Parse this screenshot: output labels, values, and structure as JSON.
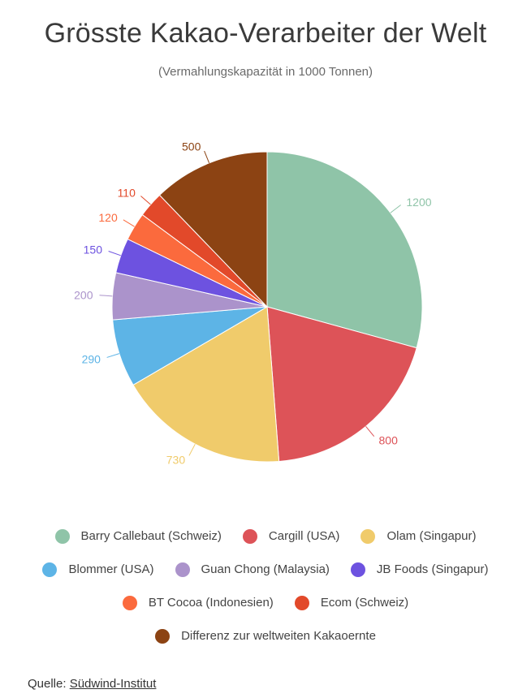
{
  "chart_data": {
    "type": "pie",
    "title": "Grösste Kakao-Verarbeiter der Welt",
    "subtitle": "(Vermahlungskapazität in 1000 Tonnen)",
    "start_angle_deg": 0,
    "direction": "clockwise",
    "slices": [
      {
        "label": "Barry Callebaut (Schweiz)",
        "value": 1200,
        "color": "#8fc4a8"
      },
      {
        "label": "Cargill (USA)",
        "value": 800,
        "color": "#dd5358"
      },
      {
        "label": "Olam (Singapur)",
        "value": 730,
        "color": "#f0cb6b"
      },
      {
        "label": "Blommer (USA)",
        "value": 290,
        "color": "#5db4e6"
      },
      {
        "label": "Guan Chong (Malaysia)",
        "value": 200,
        "color": "#ab93cb"
      },
      {
        "label": "JB Foods (Singapur)",
        "value": 150,
        "color": "#6d52e0"
      },
      {
        "label": "BT Cocoa (Indonesien)",
        "value": 120,
        "color": "#fb6a3d"
      },
      {
        "label": "Ecom (Schweiz)",
        "value": 110,
        "color": "#e2492a"
      },
      {
        "label": "Differenz zur weltweiten Kakaoernte",
        "value": 500,
        "color": "#8c4313"
      }
    ],
    "legend_position": "bottom"
  },
  "legend_rows": [
    [
      0,
      1,
      2
    ],
    [
      3,
      4,
      5
    ],
    [
      6,
      7
    ],
    [
      8
    ]
  ],
  "source": {
    "prefix": "Quelle: ",
    "link_text": "Südwind-Institut"
  }
}
